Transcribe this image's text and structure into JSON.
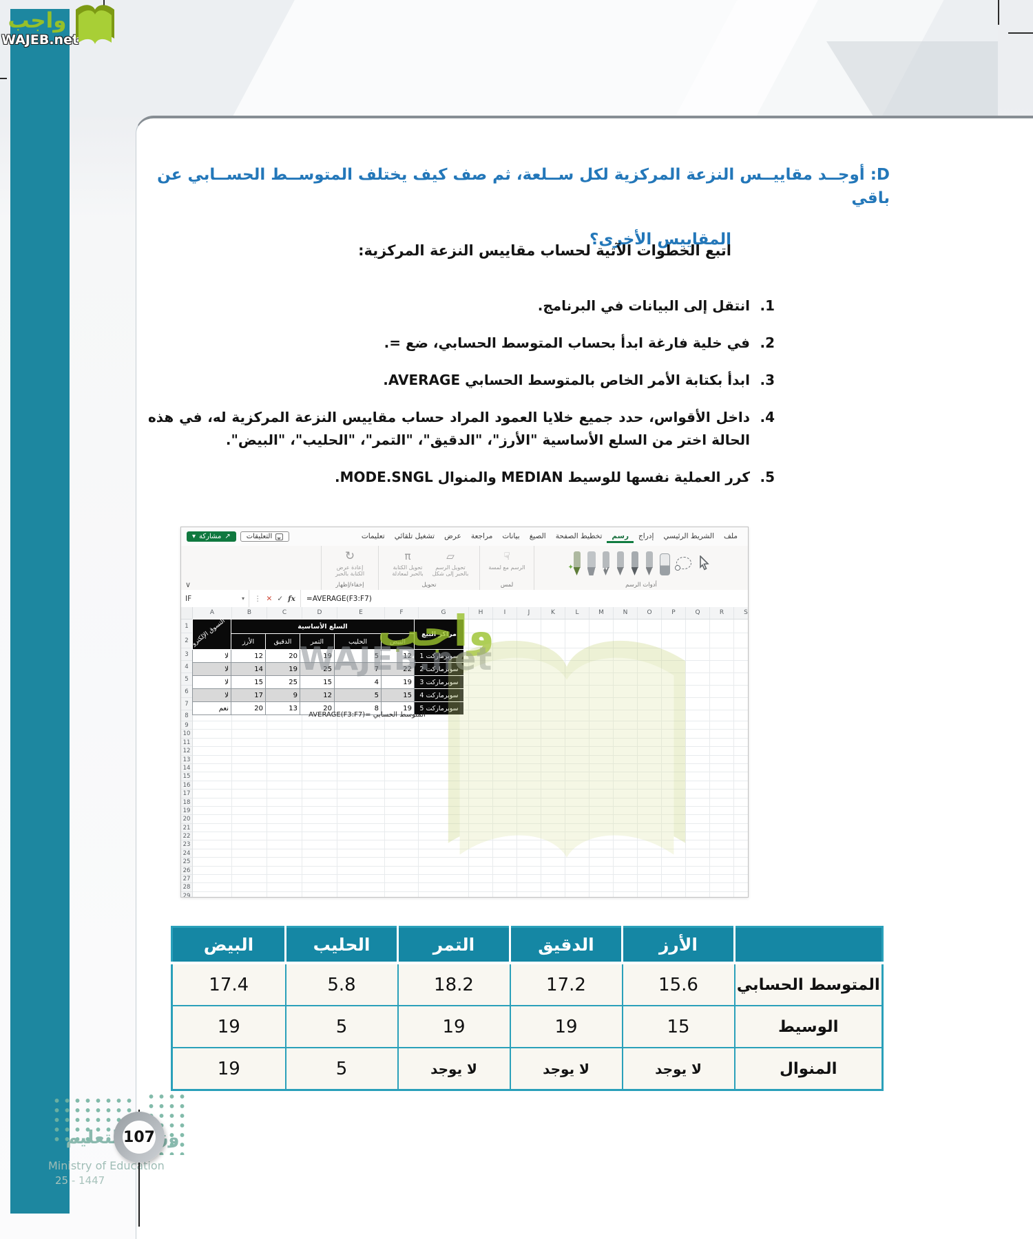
{
  "brand": {
    "arabic": "واجب",
    "latin": "WAJEB.net"
  },
  "question": {
    "label": "D:",
    "line1": "أوجــد مقاييــس النزعة المركزية لكل ســلعة، ثم صف كيف يختلف المتوســط الحســابي عن باقي",
    "line2": "المقاييس الأخرى؟"
  },
  "intro": "اتبع الخطوات الآتية لحساب مقاييس النزعة المركزية:",
  "steps": [
    {
      "num": "1.",
      "text": "انتقل إلى البيانات في البرنامج."
    },
    {
      "num": "2.",
      "text": "في خلية فارغة ابدأ بحساب المتوسط الحسابي، ضع =."
    },
    {
      "num": "3.",
      "text": "ابدأ بكتابة الأمر الخاص بالمتوسط الحسابي AVERAGE."
    },
    {
      "num": "4.",
      "text": "داخل الأقواس، حدد جميع خلايا العمود المراد حساب مقاييس النزعة المركزية له، في هذه الحالة اختر من السلع الأساسية \"الأرز\"، \"الدقيق\"، \"التمر\"، \"الحليب\"، \"البيض\"."
    },
    {
      "num": "5.",
      "text": "كرر العملية نفسها للوسيط MEDIAN والمنوال MODE.SNGL."
    }
  ],
  "excel": {
    "tabs": [
      {
        "label": "ملف",
        "active": false
      },
      {
        "label": "الشريط الرئيسي",
        "active": false
      },
      {
        "label": "إدراج",
        "active": false
      },
      {
        "label": "رسم",
        "active": true
      },
      {
        "label": "تخطيط الصفحة",
        "active": false
      },
      {
        "label": "الصيغ",
        "active": false
      },
      {
        "label": "بيانات",
        "active": false
      },
      {
        "label": "مراجعة",
        "active": false
      },
      {
        "label": "عرض",
        "active": false
      },
      {
        "label": "تشغيل تلقائي",
        "active": false
      },
      {
        "label": "تعليمات",
        "active": false
      }
    ],
    "comments_button": "التعليقات",
    "share_button": "مشاركة",
    "ribbon": {
      "draw_tools_label": "أدوات الرسم",
      "touch_button": "الرسم مع لمسة",
      "touch_group_label": "لمس",
      "convert_shape_button": "تحويل الرسم بالحبر إلى شكل",
      "convert_math_button": "تحويل الكتابة بالحبر لمعادلة",
      "convert_group_label": "تحويل",
      "replay_button": "إعادة عرض الكتابة بالحبر",
      "replay_group_label": "إخفاء/إظهار"
    },
    "icons": {
      "dropdown": "▾",
      "share_arrow": "↗",
      "cancel": "✕",
      "enter": "✓",
      "fx": "fx",
      "collapse": "∨",
      "replay": "↻",
      "math": "π",
      "shape": "▱",
      "hand": "☟"
    },
    "name_box": "IF",
    "formula": "=AVERAGE(F3:F7)",
    "columns": [
      "A",
      "B",
      "C",
      "D",
      "E",
      "F",
      "G",
      "H",
      "I",
      "J",
      "K",
      "L",
      "M",
      "N",
      "O",
      "P",
      "Q",
      "R",
      "S"
    ],
    "row_count": 29,
    "table": {
      "title": "السلع الأساسية",
      "corner": "التسوق الإلكترو",
      "centers_header": "مراكز البيع",
      "headers": [
        "الأرز",
        "الدقيق",
        "التمر",
        "الحليب",
        "البيض"
      ],
      "rows": [
        {
          "online": "لا",
          "values": [
            12,
            20,
            19,
            5,
            12
          ],
          "center": "سوبرماركت 1"
        },
        {
          "online": "لا",
          "values": [
            14,
            19,
            25,
            7,
            22
          ],
          "center": "سوبرماركت 2"
        },
        {
          "online": "لا",
          "values": [
            15,
            25,
            15,
            4,
            19
          ],
          "center": "سوبرماركت 3"
        },
        {
          "online": "لا",
          "values": [
            17,
            9,
            12,
            5,
            15
          ],
          "center": "سوبرماركت 4"
        },
        {
          "online": "نعم",
          "values": [
            20,
            13,
            20,
            8,
            19
          ],
          "center": "سوبرماركت 5"
        }
      ],
      "note": "المتوسط الحسابي =AVERAGE(F3:F7)"
    }
  },
  "summary": {
    "col_headers": [
      "الأرز",
      "الدقيق",
      "التمر",
      "الحليب",
      "البيض"
    ],
    "rows": [
      {
        "label": "المتوسط الحسابي",
        "values": [
          "15.6",
          "17.2",
          "18.2",
          "5.8",
          "17.4"
        ]
      },
      {
        "label": "الوسيط",
        "values": [
          "15",
          "19",
          "19",
          "5",
          "19"
        ]
      },
      {
        "label": "المنوال",
        "values": [
          "لا يوجد",
          "لا يوجد",
          "لا يوجد",
          "5",
          "19"
        ]
      }
    ]
  },
  "footer": {
    "page_number": "107",
    "ministry_ar": "وزارة التعليم",
    "ministry_en": "Ministry of Education",
    "years": "25 - 1447"
  }
}
